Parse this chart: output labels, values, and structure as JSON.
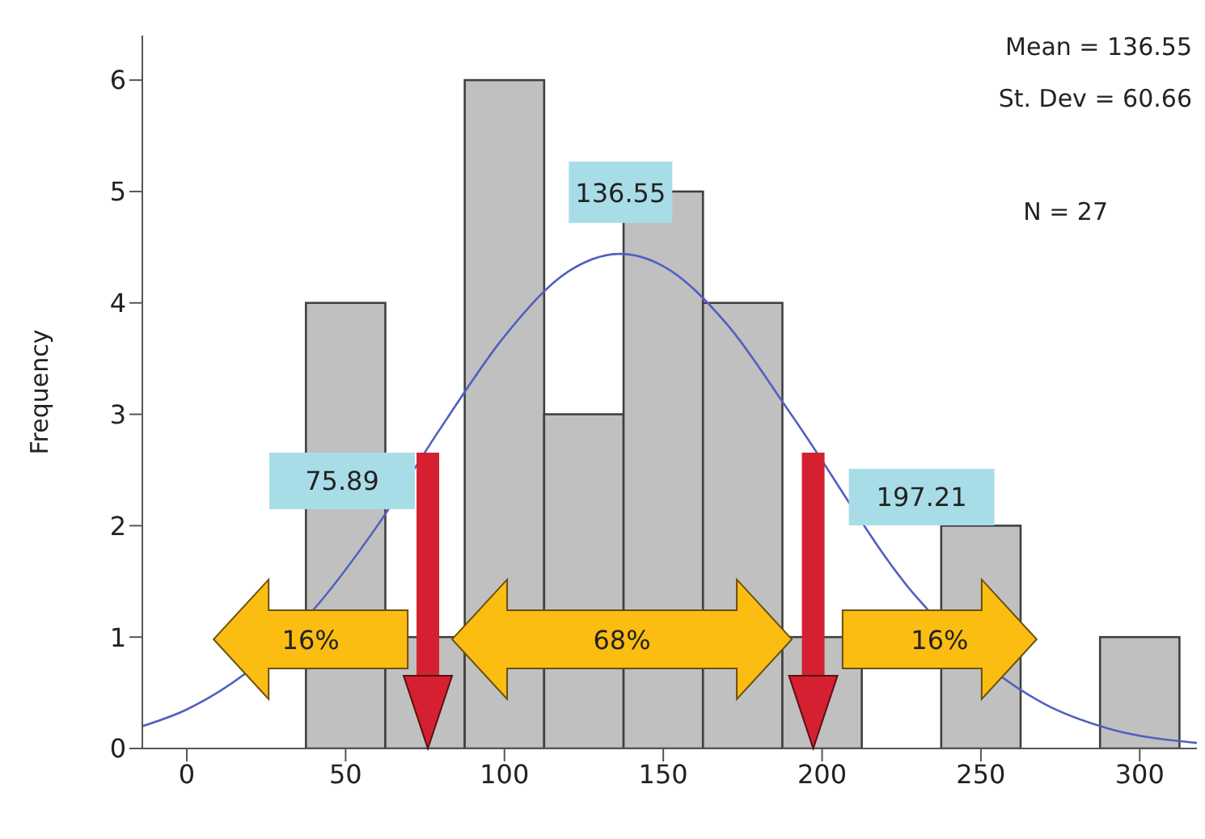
{
  "chart_data": {
    "type": "histogram",
    "ylabel": "Frequency",
    "bins": [
      37.5,
      62.5,
      87.5,
      112.5,
      137.5,
      162.5,
      187.5,
      212.5,
      237.5,
      262.5,
      287.5,
      312.5
    ],
    "values": [
      4,
      1,
      6,
      3,
      5,
      4,
      1,
      0,
      2,
      0,
      1
    ],
    "color": "#c0c0c0",
    "series": [
      {
        "type": "line",
        "color": "#5060c0",
        "x": [
          -14,
          0,
          40,
          60,
          80,
          100,
          120,
          136.55,
          150,
          170,
          190,
          230,
          270,
          290,
          318
        ],
        "values": [
          0.2,
          0.35,
          1.25,
          2.0,
          2.88,
          3.7,
          4.28,
          4.44,
          4.33,
          3.81,
          3.01,
          1.35,
          0.4,
          0.18,
          0.05
        ]
      }
    ],
    "xlim": [
      -14,
      318
    ],
    "xticks": [
      0,
      50,
      100,
      150,
      200,
      250,
      300
    ],
    "ylim": [
      0,
      6.4
    ],
    "yticks": [
      0,
      1,
      2,
      3,
      4,
      5,
      6
    ],
    "grid": false,
    "ref_lines": [
      {
        "axis": "x",
        "value": 75.89,
        "label": "75.89",
        "color": "#d42030"
      },
      {
        "axis": "x",
        "value": 197.21,
        "label": "197.21",
        "color": "#d42030"
      }
    ],
    "annotations": [
      "Mean = 136.55",
      "St. Dev = 60.66",
      "N = 27",
      {
        "text": "136.55",
        "x": 136.55,
        "y": 4.95
      },
      {
        "text": "16%",
        "x": 39,
        "y": 0.98
      },
      {
        "text": "68%",
        "x": 137,
        "y": 0.98
      },
      {
        "text": "16%",
        "x": 237,
        "y": 0.98
      }
    ]
  }
}
